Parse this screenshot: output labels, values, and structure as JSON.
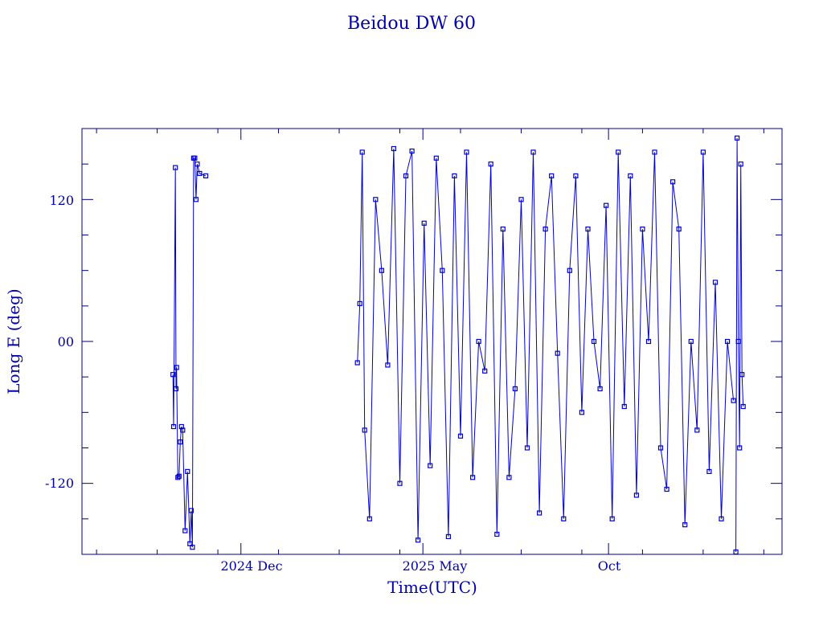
{
  "chart_data": {
    "type": "scatter",
    "title": "Beidou DW 60",
    "xlabel": "Time(UTC)",
    "ylabel": "Long E (deg)",
    "x_ticks": [
      "2024 Dec",
      "2025 May",
      "Oct"
    ],
    "y_ticks": [
      "120",
      "00",
      "-120"
    ],
    "ylim": [
      -180,
      180
    ],
    "grid": false,
    "marker": "square",
    "connected": true,
    "color": "#0000cc",
    "x_units": "days since 2024-07-01",
    "xlim": [
      -7,
      570
    ],
    "series": [
      {
        "name": "",
        "x": [
          68,
          68.5,
          70,
          70.5,
          71,
          72,
          73,
          74,
          75,
          76,
          78,
          80,
          82,
          83,
          84,
          85,
          86,
          87,
          88,
          90,
          95
        ],
        "y": [
          -28,
          -72,
          147,
          -40,
          -22,
          -115,
          -114,
          -85,
          -72,
          -75,
          -160,
          -110,
          -171,
          -143,
          -174,
          155,
          155,
          120,
          150,
          142,
          140
        ]
      },
      {
        "name": "",
        "x": [
          220,
          222,
          224,
          226,
          230,
          235,
          240,
          245,
          250,
          255,
          260,
          265,
          270,
          275,
          280,
          285,
          290,
          295,
          300,
          305,
          310,
          315,
          320,
          325,
          330,
          335,
          340,
          345,
          350,
          355,
          360,
          365,
          370,
          375,
          380,
          385,
          390,
          395,
          400,
          405,
          410,
          415,
          420,
          425,
          430,
          435,
          440,
          445,
          450,
          455,
          460,
          465,
          470,
          475,
          480,
          485,
          490,
          495,
          500,
          505,
          510,
          515,
          520,
          525,
          530
        ],
        "y": [
          -18,
          32,
          160,
          -75,
          -150,
          120,
          60,
          -20,
          163,
          -120,
          140,
          161,
          -168,
          100,
          -105,
          155,
          60,
          -165,
          140,
          -80,
          160,
          -115,
          0,
          -25,
          150,
          -163,
          95,
          -115,
          -40,
          120,
          -90,
          160,
          -145,
          95,
          140,
          -10,
          -150,
          60,
          140,
          -60,
          95,
          0,
          -40,
          115,
          -150,
          160,
          -55,
          140,
          -130,
          95,
          0,
          160,
          -90,
          -125,
          135,
          95,
          -155,
          0,
          -75,
          160,
          -110,
          50,
          -150,
          0,
          -50
        ]
      },
      {
        "name": "",
        "x": [
          532,
          533,
          534,
          535,
          536,
          537,
          538
        ],
        "y": [
          -178,
          172,
          0,
          -90,
          150,
          -28,
          -55
        ]
      }
    ]
  }
}
